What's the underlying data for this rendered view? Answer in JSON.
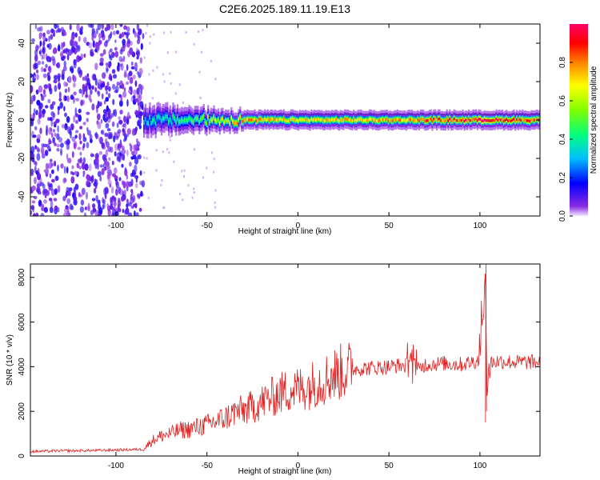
{
  "title": "C2E6.2025.189.11.19.E13",
  "colors": {
    "snr_line": "#e02020",
    "noise": "#8a2be2",
    "frame": "#000000"
  },
  "chart_data": [
    {
      "type": "heatmap",
      "xlabel": "Height of straight line (km)",
      "ylabel": "Frequency (Hz)",
      "xlim": [
        -147,
        133
      ],
      "ylim": [
        -50,
        50
      ],
      "x_ticks": [
        -100,
        -50,
        0,
        50,
        100
      ],
      "y_ticks": [
        -40,
        -20,
        0,
        20,
        40
      ],
      "colorbar": {
        "label": "Normalized spectral amplitude",
        "range": [
          0,
          1
        ],
        "ticks": [
          "0.0",
          "0.2",
          "0.4",
          "0.6",
          "0.8"
        ],
        "colormap": "rainbow-purple-to-magenta"
      },
      "signal_band": {
        "center_hz": 0,
        "appears_at_height_km": -85,
        "description_values": [
          {
            "x": -85,
            "peak_amp": 0.35
          },
          {
            "x": -60,
            "peak_amp": 0.45
          },
          {
            "x": -30,
            "peak_amp": 0.8
          },
          {
            "x": 0,
            "peak_amp": 0.7
          },
          {
            "x": 50,
            "peak_amp": 0.75
          },
          {
            "x": 100,
            "peak_amp": 0.95
          },
          {
            "x": 133,
            "peak_amp": 0.85
          }
        ]
      }
    },
    {
      "type": "line",
      "xlabel": "Height of straight line (km)",
      "ylabel": "SNR (10 * v/v)",
      "xlim": [
        -147,
        133
      ],
      "ylim": [
        0,
        8600
      ],
      "x_ticks": [
        -100,
        -50,
        0,
        50,
        100
      ],
      "y_ticks": [
        0,
        2000,
        4000,
        6000,
        8000
      ],
      "series": [
        {
          "points": [
            [
              -147,
              200
            ],
            [
              -130,
              230
            ],
            [
              -110,
              250
            ],
            [
              -95,
              280
            ],
            [
              -85,
              300
            ],
            [
              -80,
              700
            ],
            [
              -75,
              900
            ],
            [
              -70,
              1000
            ],
            [
              -65,
              1150
            ],
            [
              -60,
              1200
            ],
            [
              -55,
              1300
            ],
            [
              -50,
              1400
            ],
            [
              -45,
              1550
            ],
            [
              -40,
              1700
            ],
            [
              -35,
              1950
            ],
            [
              -30,
              2050
            ],
            [
              -25,
              2200
            ],
            [
              -20,
              2400
            ],
            [
              -15,
              2600
            ],
            [
              -10,
              2800
            ],
            [
              -5,
              2950
            ],
            [
              0,
              3000
            ],
            [
              5,
              3100
            ],
            [
              10,
              3300
            ],
            [
              15,
              3450
            ],
            [
              20,
              3650
            ],
            [
              25,
              3800
            ],
            [
              30,
              3900
            ],
            [
              40,
              3950
            ],
            [
              50,
              4000
            ],
            [
              55,
              4050
            ],
            [
              60,
              4050
            ],
            [
              63,
              4600
            ],
            [
              65,
              3800
            ],
            [
              70,
              4100
            ],
            [
              80,
              4150
            ],
            [
              90,
              4100
            ],
            [
              95,
              4200
            ],
            [
              100,
              4300
            ],
            [
              102,
              6000
            ],
            [
              103,
              8600
            ],
            [
              104,
              2500
            ],
            [
              106,
              4200
            ],
            [
              110,
              4250
            ],
            [
              120,
              4200
            ],
            [
              133,
              4200
            ]
          ]
        }
      ]
    }
  ]
}
